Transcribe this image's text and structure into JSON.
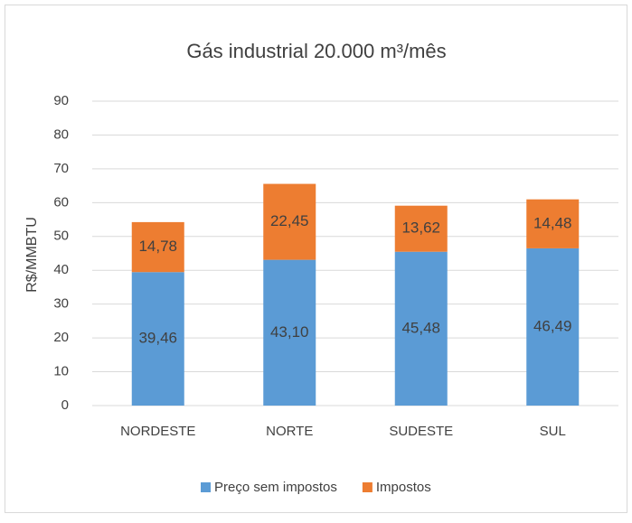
{
  "chart_data": {
    "type": "stacked_bar",
    "title": "Gás industrial 20.000 m³/mês",
    "y_label": "R$/MMBTU",
    "categories": [
      "NORDESTE",
      "NORTE",
      "SUDESTE",
      "SUL"
    ],
    "series": [
      {
        "name": "Preço sem impostos",
        "color": "#5b9bd5",
        "values": [
          39.46,
          43.1,
          45.48,
          46.49
        ],
        "value_labels": [
          "39,46",
          "43,10",
          "45,48",
          "46,49"
        ]
      },
      {
        "name": "Impostos",
        "color": "#ed7d31",
        "values": [
          14.78,
          22.45,
          13.62,
          14.48
        ],
        "value_labels": [
          "14,78",
          "22,45",
          "13,62",
          "14,48"
        ]
      }
    ],
    "ylim": [
      0,
      90
    ],
    "yticks": [
      0,
      10,
      20,
      30,
      40,
      50,
      60,
      70,
      80,
      90
    ],
    "grid": true,
    "legend": "bottom"
  }
}
